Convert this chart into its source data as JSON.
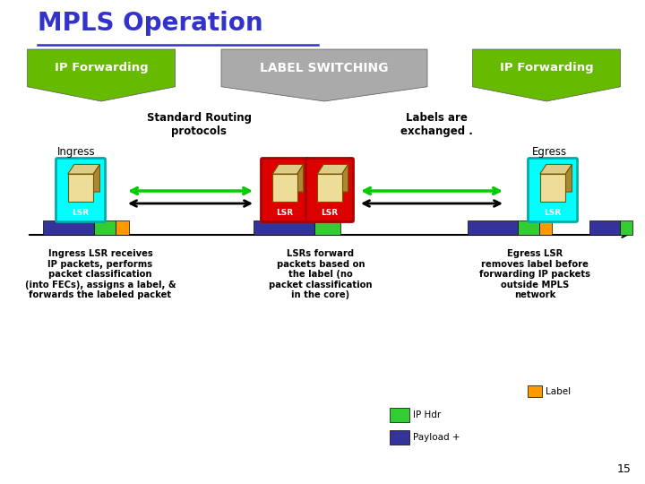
{
  "title": "MPLS Operation",
  "title_color": "#3333CC",
  "bg_color": "#FFFFFF",
  "banner_left_text": "IP Forwarding",
  "banner_center_text": "LABEL SWITCHING",
  "banner_right_text": "IP Forwarding",
  "banner_left_color": "#66BB00",
  "banner_center_color": "#AAAAAA",
  "banner_right_color": "#66BB00",
  "std_routing_text": "Standard Routing\nprotocols",
  "labels_exchanged_text": "Labels are\nexchanged .",
  "ingress_text": "Ingress",
  "egress_text": "Egress",
  "arrow_color_green": "#00CC00",
  "arrow_color_black": "#000000",
  "cyan_color": "#00FFFF",
  "red_color": "#DD0000",
  "router_border_cyan": "#00AAAA",
  "router_border_red": "#AA0000",
  "dark_blue": "#333399",
  "green_hdr": "#33CC33",
  "orange_label": "#FF9900",
  "desc_left": "Ingress LSR receives\nIP packets, performs\npacket classification\n(into FECs), assigns a label, &\nforwards the labeled packet",
  "desc_center": "LSRs forward\npackets based on\nthe label (no\npacket classification\nin the core)",
  "desc_right": "Egress LSR\nremoves label before\nforwarding IP packets\noutside MPLS\nnetwork",
  "legend_label_text": "Label",
  "legend_iphdr_text": "IP Hdr",
  "legend_payload_text": "Payload +",
  "page_num": "15"
}
